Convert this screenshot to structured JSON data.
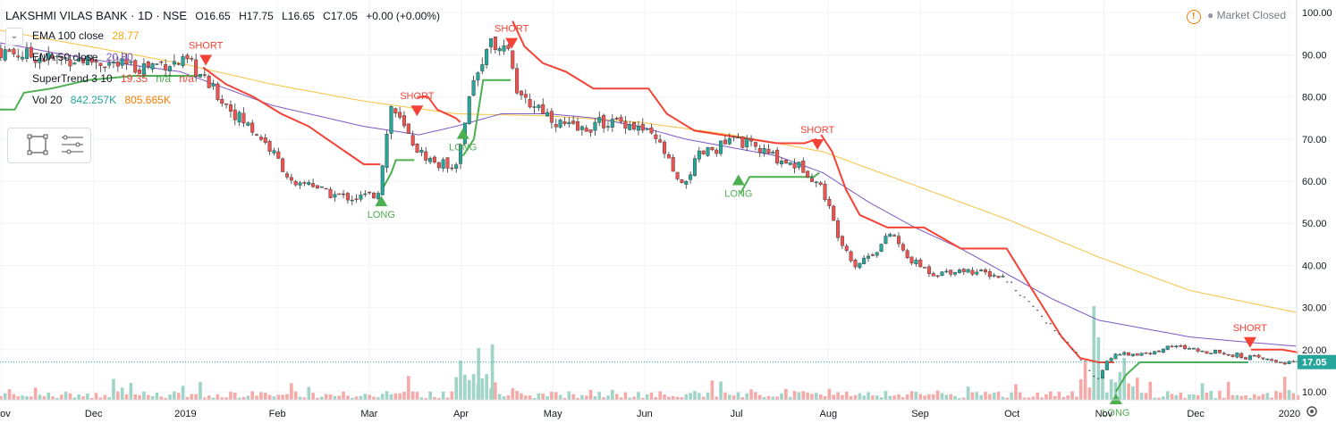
{
  "header": {
    "symbol": "LAKSHMI VILAS BANK · 1D · NSE",
    "open": "O16.65",
    "high": "H17.75",
    "low": "L16.65",
    "close": "C17.05",
    "change": "+0.00 (+0.00%)",
    "status": "Market Closed"
  },
  "indicators": {
    "ema100": {
      "label": "EMA 100 close",
      "value": "28.77"
    },
    "ema50": {
      "label": "EMA 50 close",
      "value": "20.80"
    },
    "supertrend": {
      "label": "SuperTrend 3 10",
      "value": "19.35",
      "na1": "n/a",
      "na2": "n/a"
    },
    "vol": {
      "label": "Vol 20",
      "value1": "842.257K",
      "value2": "805.665K"
    }
  },
  "colors": {
    "up": "#26a69a",
    "down": "#ef5350",
    "ema100": "#f6c343",
    "ema50": "#7e57c2",
    "st_up": "#4caf50",
    "st_down": "#f44336",
    "vol_up": "#9fd4c6",
    "vol_down": "#f6aaa8",
    "last_price_bg": "#26a69a"
  },
  "chart_data": {
    "type": "candlestick",
    "price_axis": {
      "ticks": [
        "100.00",
        "90.00",
        "80.00",
        "70.00",
        "60.00",
        "50.00",
        "40.00",
        "30.00",
        "20.00",
        "10.00"
      ],
      "range": [
        8,
        102
      ]
    },
    "time_axis": {
      "ticks": [
        "Nov",
        "Dec",
        "2019",
        "Feb",
        "Mar",
        "Apr",
        "May",
        "Jun",
        "Jul",
        "Aug",
        "Sep",
        "Oct",
        "Nov",
        "Dec",
        "2020"
      ]
    },
    "last_price": "17.05",
    "signals": [
      {
        "type": "SHORT",
        "label": "SHORT",
        "month": 2.28,
        "price": 87
      },
      {
        "type": "LONG",
        "label": "LONG",
        "month": 4.19,
        "price": 57
      },
      {
        "type": "SHORT",
        "label": "SHORT",
        "month": 4.58,
        "price": 75
      },
      {
        "type": "LONG",
        "label": "LONG",
        "month": 5.08,
        "price": 73
      },
      {
        "type": "SHORT",
        "label": "SHORT",
        "month": 5.61,
        "price": 91
      },
      {
        "type": "LONG",
        "label": "LONG",
        "month": 8.08,
        "price": 62
      },
      {
        "type": "SHORT",
        "label": "SHORT",
        "month": 8.94,
        "price": 67
      },
      {
        "type": "LONG",
        "label": "LONG",
        "month": 12.19,
        "price": 10
      },
      {
        "type": "SHORT",
        "label": "SHORT",
        "month": 13.65,
        "price": 20
      }
    ],
    "anchors": [
      [
        0,
        91
      ],
      [
        0.3,
        90
      ],
      [
        0.6,
        89
      ],
      [
        0.9,
        89
      ],
      [
        1.2,
        88
      ],
      [
        1.5,
        87
      ],
      [
        1.8,
        88
      ],
      [
        2.1,
        88
      ],
      [
        2.3,
        83
      ],
      [
        2.6,
        76
      ],
      [
        2.9,
        70
      ],
      [
        3.1,
        64
      ],
      [
        3.25,
        58
      ],
      [
        3.4,
        60
      ],
      [
        3.6,
        57
      ],
      [
        3.9,
        56
      ],
      [
        4.15,
        57
      ],
      [
        4.3,
        78
      ],
      [
        4.45,
        72
      ],
      [
        4.6,
        67
      ],
      [
        4.8,
        64
      ],
      [
        5.0,
        64
      ],
      [
        5.15,
        80
      ],
      [
        5.35,
        93
      ],
      [
        5.55,
        93
      ],
      [
        5.7,
        79
      ],
      [
        5.9,
        78
      ],
      [
        6.1,
        74
      ],
      [
        6.35,
        72
      ],
      [
        6.6,
        74
      ],
      [
        6.85,
        74
      ],
      [
        7.05,
        72
      ],
      [
        7.25,
        68
      ],
      [
        7.45,
        58
      ],
      [
        7.65,
        66
      ],
      [
        7.85,
        68
      ],
      [
        8.05,
        70
      ],
      [
        8.25,
        68
      ],
      [
        8.55,
        65
      ],
      [
        8.8,
        63
      ],
      [
        9.0,
        58
      ],
      [
        9.15,
        48
      ],
      [
        9.35,
        40
      ],
      [
        9.6,
        44
      ],
      [
        9.75,
        48
      ],
      [
        9.9,
        42
      ],
      [
        10.2,
        38
      ],
      [
        10.5,
        39
      ],
      [
        10.8,
        38
      ],
      [
        11.0,
        37
      ],
      [
        11.3,
        30
      ],
      [
        11.6,
        23
      ],
      [
        11.85,
        17
      ],
      [
        12.0,
        13
      ],
      [
        12.1,
        18
      ],
      [
        12.3,
        19
      ],
      [
        12.55,
        19
      ],
      [
        12.8,
        21
      ],
      [
        13.05,
        20
      ],
      [
        13.4,
        19
      ],
      [
        13.7,
        18
      ],
      [
        14.0,
        17
      ],
      [
        14.17,
        17.05
      ]
    ],
    "ema100_anchors": [
      [
        0,
        96
      ],
      [
        1,
        92
      ],
      [
        2,
        88
      ],
      [
        3,
        83
      ],
      [
        4,
        79
      ],
      [
        5,
        76
      ],
      [
        6,
        75.5
      ],
      [
        7,
        74
      ],
      [
        8,
        71
      ],
      [
        9,
        67
      ],
      [
        10,
        59
      ],
      [
        11,
        51
      ],
      [
        12,
        42
      ],
      [
        13,
        34
      ],
      [
        14.17,
        28.77
      ]
    ],
    "ema50_anchors": [
      [
        0,
        93
      ],
      [
        1,
        89
      ],
      [
        2,
        86
      ],
      [
        3,
        78
      ],
      [
        4,
        73
      ],
      [
        4.6,
        71
      ],
      [
        5,
        73
      ],
      [
        5.5,
        76
      ],
      [
        6,
        76
      ],
      [
        6.5,
        75
      ],
      [
        7,
        73
      ],
      [
        7.5,
        70
      ],
      [
        8,
        68
      ],
      [
        8.5,
        66
      ],
      [
        9,
        62
      ],
      [
        9.5,
        55
      ],
      [
        10,
        49
      ],
      [
        10.5,
        44
      ],
      [
        11,
        38
      ],
      [
        11.5,
        32
      ],
      [
        12,
        27
      ],
      [
        12.5,
        25
      ],
      [
        13,
        23
      ],
      [
        13.5,
        22
      ],
      [
        14.17,
        20.8
      ]
    ],
    "supertrend_segments": [
      {
        "dir": "up",
        "points": [
          [
            0,
            77
          ],
          [
            0.2,
            77
          ],
          [
            0.3,
            81
          ],
          [
            0.6,
            82
          ],
          [
            1.0,
            84
          ],
          [
            1.5,
            85
          ],
          [
            2.0,
            85
          ],
          [
            2.2,
            85
          ]
        ]
      },
      {
        "dir": "down",
        "points": [
          [
            2.25,
            87
          ],
          [
            2.5,
            83
          ],
          [
            2.8,
            80
          ],
          [
            3.1,
            76
          ],
          [
            3.4,
            73
          ],
          [
            3.6,
            70
          ],
          [
            3.8,
            67
          ],
          [
            4.0,
            64
          ],
          [
            4.18,
            64
          ]
        ]
      },
      {
        "dir": "up",
        "points": [
          [
            4.2,
            58
          ],
          [
            4.3,
            62
          ],
          [
            4.35,
            65
          ],
          [
            4.55,
            65
          ]
        ]
      },
      {
        "dir": "down",
        "points": [
          [
            4.58,
            80
          ],
          [
            4.7,
            80
          ],
          [
            4.8,
            77
          ],
          [
            5.0,
            75
          ],
          [
            5.05,
            74
          ]
        ]
      },
      {
        "dir": "up",
        "points": [
          [
            5.08,
            66
          ],
          [
            5.2,
            70
          ],
          [
            5.3,
            84
          ],
          [
            5.6,
            84
          ]
        ]
      },
      {
        "dir": "down",
        "points": [
          [
            5.62,
            98
          ],
          [
            5.75,
            92
          ],
          [
            5.95,
            88
          ],
          [
            6.2,
            86
          ],
          [
            6.5,
            82
          ],
          [
            6.8,
            82
          ],
          [
            7.1,
            82
          ],
          [
            7.3,
            76
          ],
          [
            7.6,
            72
          ],
          [
            7.9,
            71
          ],
          [
            8.2,
            70
          ],
          [
            8.5,
            69
          ],
          [
            8.8,
            69
          ],
          [
            8.93,
            70
          ]
        ]
      },
      {
        "dir": "up",
        "points": [
          [
            8.1,
            57
          ],
          [
            8.2,
            61
          ],
          [
            8.5,
            61
          ],
          [
            8.9,
            61
          ],
          [
            8.96,
            62
          ]
        ]
      },
      {
        "dir": "down",
        "points": [
          [
            8.98,
            71
          ],
          [
            9.1,
            67
          ],
          [
            9.25,
            58
          ],
          [
            9.4,
            52
          ],
          [
            9.7,
            49
          ],
          [
            10.1,
            49
          ],
          [
            10.5,
            44
          ],
          [
            10.9,
            44
          ],
          [
            11.0,
            44
          ],
          [
            11.2,
            37
          ],
          [
            11.4,
            30
          ],
          [
            11.6,
            23
          ],
          [
            11.8,
            18
          ],
          [
            12.0,
            17
          ],
          [
            12.17,
            17
          ]
        ]
      },
      {
        "dir": "up",
        "points": [
          [
            12.19,
            10
          ],
          [
            12.3,
            14
          ],
          [
            12.45,
            17
          ],
          [
            12.7,
            17
          ],
          [
            13.0,
            17
          ],
          [
            13.5,
            17
          ],
          [
            13.63,
            17
          ]
        ]
      },
      {
        "dir": "down",
        "points": [
          [
            13.66,
            20
          ],
          [
            14.0,
            20
          ],
          [
            14.17,
            19.35
          ]
        ]
      }
    ]
  }
}
